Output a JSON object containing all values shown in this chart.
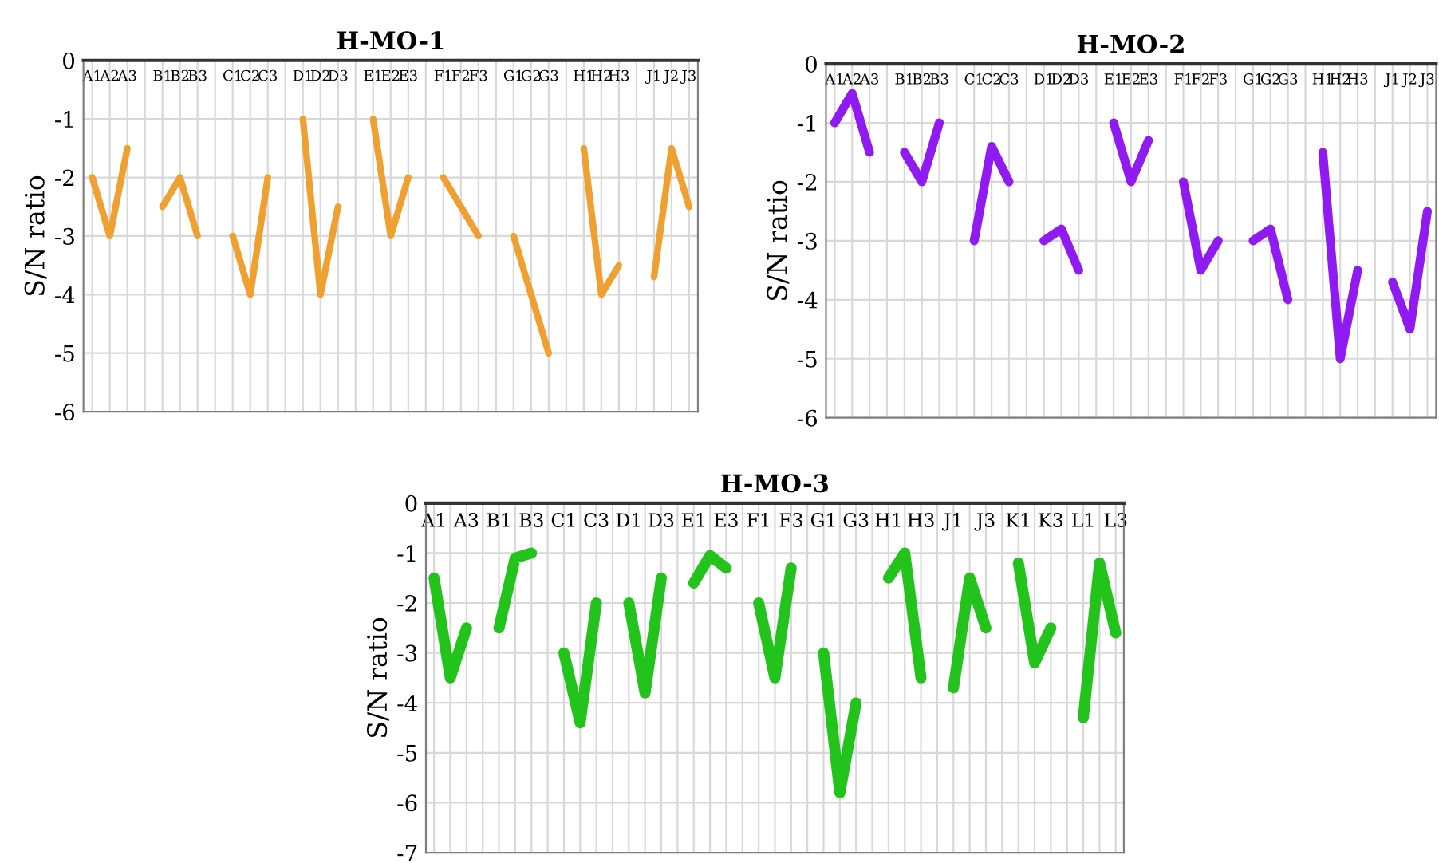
{
  "chart_data": [
    {
      "type": "line",
      "title": "H-MO-1",
      "ylabel": "S/N ratio",
      "categories": [
        "A1",
        "A2",
        "A3",
        null,
        "B1",
        "B2",
        "B3",
        null,
        "C1",
        "C2",
        "C3",
        null,
        "D1",
        "D2",
        "D3",
        null,
        "E1",
        "E2",
        "E3",
        null,
        "F1",
        "F2",
        "F3",
        null,
        "G1",
        "G2",
        "G3",
        null,
        "H1",
        "H2",
        "H3",
        null,
        "J1",
        "J2",
        "J3"
      ],
      "series": [
        {
          "color": "#f0a030",
          "values": [
            -2,
            -3,
            -1.5,
            null,
            -2.5,
            -2,
            -3,
            null,
            -3,
            -4,
            -2,
            null,
            -1,
            -4,
            -2.5,
            null,
            -1,
            -3,
            -2,
            null,
            -2,
            -2.5,
            -3,
            null,
            -3,
            -4,
            -5,
            null,
            -1.5,
            -4,
            -3.5,
            null,
            -3.7,
            -1.5,
            -2.5
          ]
        }
      ],
      "ylim": [
        -6,
        0
      ],
      "yticks": [
        0,
        -1,
        -2,
        -3,
        -4,
        -5,
        -6
      ],
      "grid": true,
      "legend": false,
      "marker": "none",
      "line_style": "solid"
    },
    {
      "type": "line",
      "title": "H-MO-2",
      "ylabel": "S/N ratio",
      "categories": [
        "A1",
        "A2",
        "A3",
        null,
        "B1",
        "B2",
        "B3",
        null,
        "C1",
        "C2",
        "C3",
        null,
        "D1",
        "D2",
        "D3",
        null,
        "E1",
        "E2",
        "E3",
        null,
        "F1",
        "F2",
        "F3",
        null,
        "G1",
        "G2",
        "G3",
        null,
        "H1",
        "H2",
        "H3",
        null,
        "J1",
        "J2",
        "J3"
      ],
      "series": [
        {
          "color": "#8f1af2",
          "values": [
            -1,
            -0.5,
            -1.5,
            null,
            -1.5,
            -2,
            -1,
            null,
            -3,
            -1.4,
            -2,
            null,
            -3,
            -2.8,
            -3.5,
            null,
            -1,
            -2,
            -1.3,
            null,
            -2,
            -3.5,
            -3,
            null,
            -3,
            -2.8,
            -4,
            null,
            -1.5,
            -5,
            -3.5,
            null,
            -3.7,
            -4.5,
            -2.5
          ]
        }
      ],
      "ylim": [
        -6,
        0
      ],
      "yticks": [
        0,
        -1,
        -2,
        -3,
        -4,
        -5,
        -6
      ],
      "grid": true,
      "legend": false,
      "marker": "none",
      "line_style": "solid"
    },
    {
      "type": "line",
      "title": "H-MO-3",
      "ylabel": "S/N ratio",
      "categories": [
        "A1",
        null,
        "A3",
        null,
        "B1",
        null,
        "B3",
        null,
        "C1",
        null,
        "C3",
        null,
        "D1",
        null,
        "D3",
        null,
        "E1",
        null,
        "E3",
        null,
        "F1",
        null,
        "F3",
        null,
        "G1",
        null,
        "G3",
        null,
        "H1",
        null,
        "H3",
        null,
        "J1",
        null,
        "J3",
        null,
        "K1",
        null,
        "K3",
        null,
        "L1",
        null,
        "L3"
      ],
      "series": [
        {
          "color": "#22c41c",
          "values": [
            -1.5,
            -3.5,
            -2.5,
            null,
            -2.5,
            -1.1,
            -1.0,
            null,
            -3.0,
            -4.4,
            -2.0,
            null,
            -2.0,
            -3.8,
            -1.5,
            null,
            -1.6,
            -1.05,
            -1.3,
            null,
            -2.0,
            -3.5,
            -1.3,
            null,
            -3.0,
            -5.8,
            -4.0,
            null,
            -1.5,
            -1.0,
            -3.5,
            null,
            -3.7,
            -1.5,
            -2.5,
            null,
            -1.2,
            -3.2,
            -2.5,
            null,
            -4.3,
            -1.2,
            -2.6
          ]
        }
      ],
      "ylim": [
        -7,
        0
      ],
      "yticks": [
        0,
        -1,
        -2,
        -3,
        -4,
        -5,
        -6,
        -7
      ],
      "grid": true,
      "legend": false,
      "marker": "none",
      "line_style": "solid"
    }
  ]
}
